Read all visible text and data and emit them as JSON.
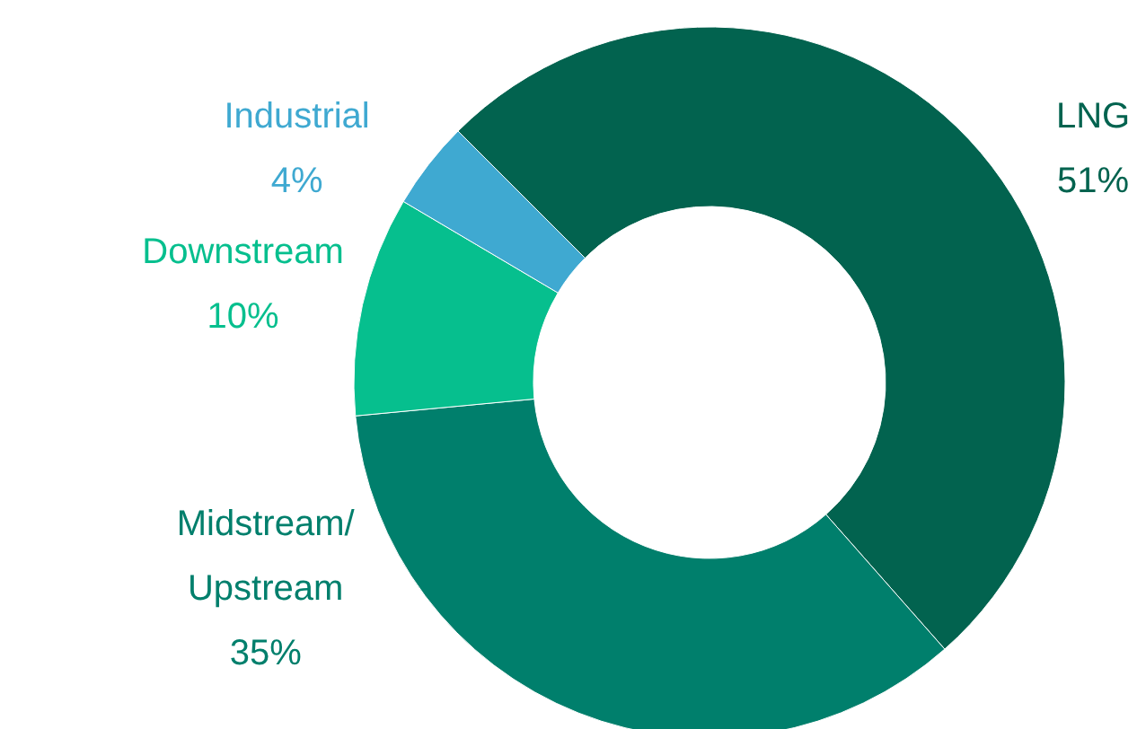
{
  "chart_data": {
    "type": "donut",
    "categories": [
      "LNG",
      "Midstream/ Upstream",
      "Downstream",
      "Industrial"
    ],
    "values": [
      51,
      35,
      10,
      4
    ],
    "colors": [
      "#02634f",
      "#007f6c",
      "#06bf8e",
      "#3fa9d1"
    ],
    "value_labels": [
      "51%",
      "35%",
      "10%",
      "4%"
    ]
  }
}
